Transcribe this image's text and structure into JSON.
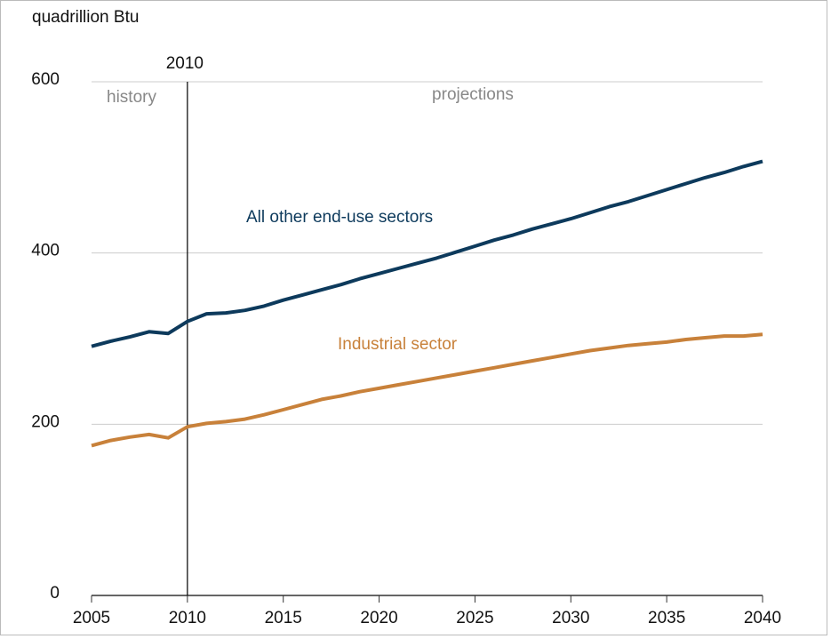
{
  "chart_data": {
    "type": "line",
    "axis_label": "quadrillion Btu",
    "divider": 2010,
    "history_label": "history",
    "projection_label": "projections",
    "x": [
      2005,
      2006,
      2007,
      2008,
      2009,
      2010,
      2011,
      2012,
      2013,
      2014,
      2015,
      2016,
      2017,
      2018,
      2019,
      2020,
      2021,
      2022,
      2023,
      2024,
      2025,
      2026,
      2027,
      2028,
      2029,
      2030,
      2031,
      2032,
      2033,
      2034,
      2035,
      2036,
      2037,
      2038,
      2039,
      2040
    ],
    "series": [
      {
        "name": "All other end-use sectors",
        "color": "#0d3a5c",
        "values": [
          291,
          297,
          302,
          308,
          306,
          320,
          329,
          330,
          333,
          338,
          345,
          351,
          357,
          363,
          370,
          376,
          382,
          388,
          394,
          401,
          408,
          415,
          421,
          428,
          434,
          440,
          447,
          454,
          460,
          467,
          474,
          481,
          488,
          494,
          501,
          507
        ]
      },
      {
        "name": "Industrial sector",
        "color": "#c8813a",
        "values": [
          175,
          181,
          185,
          188,
          184,
          197,
          201,
          203,
          206,
          211,
          217,
          223,
          229,
          233,
          238,
          242,
          246,
          250,
          254,
          258,
          262,
          266,
          270,
          274,
          278,
          282,
          286,
          289,
          292,
          294,
          296,
          299,
          301,
          303,
          303,
          305
        ]
      }
    ],
    "xlim": [
      2005,
      2040
    ],
    "xticks": [
      2005,
      2010,
      2015,
      2020,
      2025,
      2030,
      2035,
      2040
    ],
    "ylim": [
      0,
      600
    ],
    "yticks": [
      0,
      200,
      400,
      600
    ],
    "grid": true
  }
}
